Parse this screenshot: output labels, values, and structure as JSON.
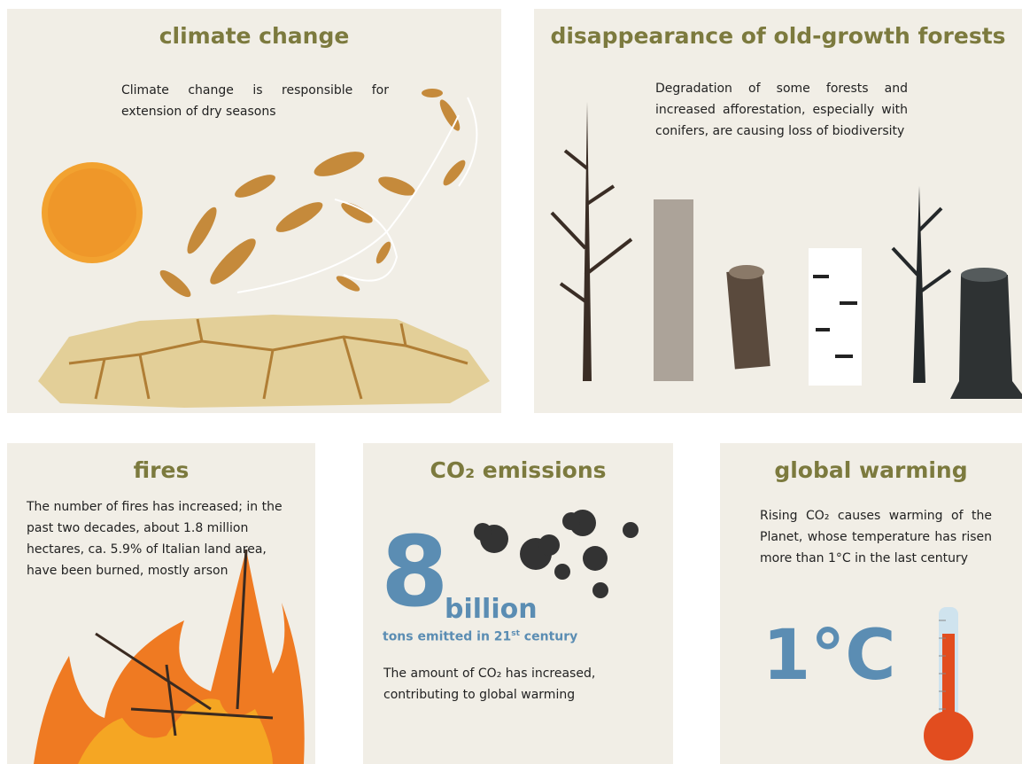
{
  "panels": {
    "climate": {
      "title": "climate change",
      "text": "Climate change is responsible for extension of dry seasons"
    },
    "forests": {
      "title": "disappearance of old-growth forests",
      "text": "Degradation of some forests and increased afforestation, especially with conifers, are causing loss of biodiversity"
    },
    "fires": {
      "title": "fires",
      "text": "The number of fires has increased; in the past two decades, about 1.8 million hectares, ca. 5.9% of Italian land area, have been burned, mostly arson"
    },
    "co2": {
      "title": "CO₂ emissions",
      "big_number": "8",
      "unit": "billion",
      "caption": [
        "tons emitted in 21",
        "st",
        " century"
      ],
      "text": "The amount of CO₂ has increased, contributing to global warming"
    },
    "warming": {
      "title": "global warming",
      "text": "Rising CO₂ causes warming of the Planet, whose temperature has risen more than 1°C in the last century",
      "big_number": "1°C"
    }
  }
}
